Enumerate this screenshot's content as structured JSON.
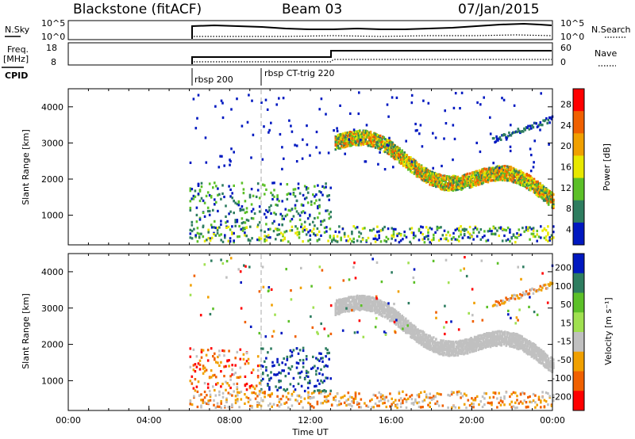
{
  "header": {
    "station": "Blackstone (fitACF)",
    "beam": "Beam 03",
    "date": "07/Jan/2015"
  },
  "top_panels": {
    "nsky_label": "N.Sky",
    "nsky_ticks": [
      "10^5",
      "10^0"
    ],
    "nsearch_label": "N.Search",
    "nsearch_ticks": [
      "10^5",
      "10^0"
    ],
    "freq_label": "Freq.",
    "freq_unit": "[MHz]",
    "freq_ticks": [
      "18",
      "8"
    ],
    "nave_label": "Nave",
    "nave_ticks": [
      "60",
      "0"
    ],
    "cpid_label": "CPID",
    "cpid_segments": [
      {
        "label": "rbsp 200",
        "start_hour": 6.0
      },
      {
        "label": "rbsp CT-trig 220",
        "start_hour": 9.5
      }
    ]
  },
  "chart_data": [
    {
      "type": "heatmap",
      "name": "power",
      "ylabel": "Slant Range [km]",
      "y_ticks": [
        "4000",
        "3000",
        "2000",
        "1000"
      ],
      "y_tick_values": [
        4000,
        3000,
        2000,
        1000
      ],
      "ylim": [
        180,
        4500
      ],
      "xlim": [
        0,
        24
      ],
      "colorbar": {
        "label": "Power [dB]",
        "ticks": [
          "28",
          "24",
          "20",
          "16",
          "12",
          "8",
          "4"
        ],
        "colors": [
          "#ff0000",
          "#f06000",
          "#f0a000",
          "#e8e800",
          "#5cc028",
          "#2e7d60",
          "#0018c0"
        ],
        "range": [
          0,
          30
        ]
      }
    },
    {
      "type": "heatmap",
      "name": "velocity",
      "ylabel": "Slant Range [km]",
      "y_ticks": [
        "4000",
        "3000",
        "2000",
        "1000"
      ],
      "y_tick_values": [
        4000,
        3000,
        2000,
        1000
      ],
      "ylim": [
        180,
        4500
      ],
      "xlim": [
        0,
        24
      ],
      "xlabel": "Time UT",
      "x_ticks": [
        "00:00",
        "04:00",
        "08:00",
        "12:00",
        "16:00",
        "20:00",
        "00:00"
      ],
      "x_tick_values": [
        0,
        4,
        8,
        12,
        16,
        20,
        24
      ],
      "colorbar": {
        "label": "Velocity [m s⁻¹]",
        "ticks": [
          "200",
          "100",
          "50",
          "15",
          "-15",
          "-50",
          "-100",
          "-200"
        ],
        "colors": [
          "#0018c0",
          "#2e7d60",
          "#5cc028",
          "#a0e050",
          "#c0c0c0",
          "#f0a000",
          "#f06000",
          "#ff0000"
        ]
      }
    }
  ]
}
